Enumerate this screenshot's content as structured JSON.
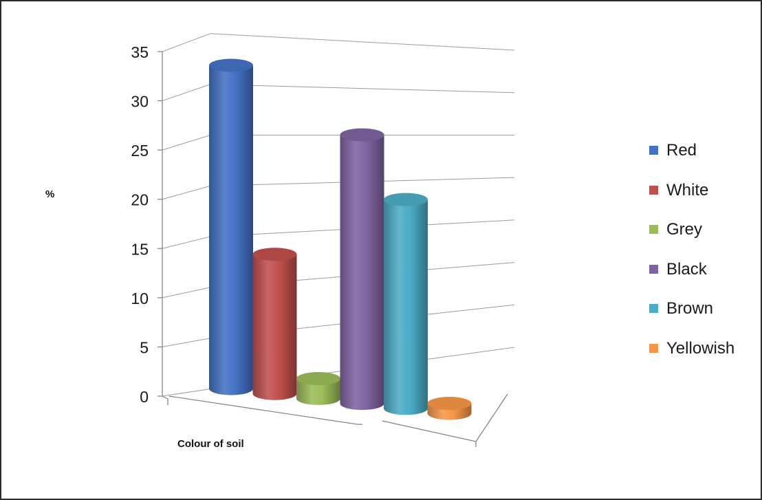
{
  "chart_data": {
    "type": "bar",
    "style": "3d-cylinder",
    "title": "",
    "xlabel": "Colour of soil",
    "ylabel": "%",
    "ylim": [
      0,
      35
    ],
    "yticks": [
      "0",
      "5",
      "10",
      "15",
      "20",
      "25",
      "30",
      "35"
    ],
    "grid": true,
    "legend_position": "right",
    "categories": [
      "Red",
      "White",
      "Grey",
      "Black",
      "Brown",
      "Yellowish"
    ],
    "values": [
      32.5,
      14,
      2,
      27,
      21,
      1
    ],
    "colors": [
      "#4472C4",
      "#C0504D",
      "#9BBB59",
      "#8064A2",
      "#4BACC6",
      "#F79646"
    ],
    "legend": [
      "Red",
      "White",
      "Grey",
      "Black",
      "Brown",
      "Yellowish"
    ]
  }
}
